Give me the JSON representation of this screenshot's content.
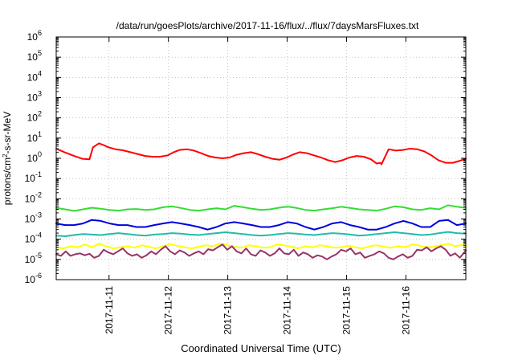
{
  "chart_data": {
    "type": "line",
    "title": "/data/run/goesPlots/archive/2017-11-16/flux/../flux/7daysMarsFluxes.txt",
    "xlabel": "Coordinated Universal Time (UTC)",
    "ylabel": {
      "base": "protons/cm",
      "sup": "2",
      "rest": "-s-sr-MeV"
    },
    "yscale": "log",
    "ylim_exp": [
      -6,
      6
    ],
    "yticks": [
      {
        "base": "10",
        "exp": "-6",
        "value": -6
      },
      {
        "base": "10",
        "exp": "-5",
        "value": -5
      },
      {
        "base": "10",
        "exp": "-4",
        "value": -4
      },
      {
        "base": "10",
        "exp": "-3",
        "value": -3
      },
      {
        "base": "10",
        "exp": "-2",
        "value": -2
      },
      {
        "base": "10",
        "exp": "-1",
        "value": -1
      },
      {
        "base": "10",
        "exp": "0",
        "value": 0
      },
      {
        "base": "10",
        "exp": "1",
        "value": 1
      },
      {
        "base": "10",
        "exp": "2",
        "value": 2
      },
      {
        "base": "10",
        "exp": "3",
        "value": 3
      },
      {
        "base": "10",
        "exp": "4",
        "value": 4
      },
      {
        "base": "10",
        "exp": "5",
        "value": 5
      },
      {
        "base": "10",
        "exp": "6",
        "value": 6
      }
    ],
    "xlim_days": [
      0,
      6.9
    ],
    "xticks": [
      {
        "label": "2017-11-11",
        "day": 0.89
      },
      {
        "label": "2017-11-12",
        "day": 1.89
      },
      {
        "label": "2017-11-13",
        "day": 2.89
      },
      {
        "label": "2017-11-14",
        "day": 3.89
      },
      {
        "label": "2017-11-15",
        "day": 4.89
      },
      {
        "label": "2017-11-16",
        "day": 5.89
      }
    ],
    "grid": true,
    "series": [
      {
        "color": "#ff0000",
        "x": [
          0,
          0.14,
          0.3,
          0.44,
          0.56,
          0.62,
          0.72,
          0.8,
          0.88,
          1.0,
          1.12,
          1.25,
          1.38,
          1.5,
          1.62,
          1.75,
          1.88,
          1.98,
          2.08,
          2.2,
          2.32,
          2.44,
          2.56,
          2.68,
          2.8,
          2.92,
          3.04,
          3.16,
          3.28,
          3.4,
          3.52,
          3.64,
          3.76,
          3.88,
          3.98,
          4.1,
          4.22,
          4.34,
          4.46,
          4.58,
          4.7,
          4.82,
          4.94,
          5.06,
          5.18,
          5.3,
          5.4,
          5.46,
          5.48,
          5.6,
          5.72,
          5.84,
          5.96,
          6.08,
          6.2,
          6.32,
          6.44,
          6.56,
          6.68,
          6.8,
          6.9
        ],
        "y": [
          3.0,
          2.0,
          1.3,
          0.95,
          0.9,
          3.5,
          5.5,
          4.5,
          3.5,
          2.8,
          2.5,
          2.0,
          1.6,
          1.3,
          1.2,
          1.2,
          1.4,
          2.0,
          2.6,
          2.8,
          2.4,
          1.8,
          1.3,
          1.1,
          1.0,
          1.1,
          1.5,
          1.8,
          2.0,
          1.6,
          1.2,
          0.95,
          0.85,
          1.1,
          1.5,
          2.0,
          1.8,
          1.4,
          1.1,
          0.8,
          0.65,
          0.8,
          1.1,
          1.3,
          1.2,
          0.9,
          0.55,
          0.6,
          0.5,
          2.8,
          2.4,
          2.6,
          3.0,
          2.8,
          2.2,
          1.4,
          0.8,
          0.6,
          0.6,
          0.75,
          0.95
        ]
      },
      {
        "color": "#33dd33",
        "x": [
          0,
          0.15,
          0.3,
          0.45,
          0.6,
          0.75,
          0.9,
          1.05,
          1.2,
          1.35,
          1.5,
          1.65,
          1.8,
          1.95,
          2.1,
          2.25,
          2.4,
          2.55,
          2.7,
          2.85,
          3.0,
          3.15,
          3.3,
          3.45,
          3.6,
          3.75,
          3.9,
          4.05,
          4.2,
          4.35,
          4.5,
          4.65,
          4.8,
          4.95,
          5.1,
          5.25,
          5.4,
          5.55,
          5.7,
          5.85,
          6.0,
          6.15,
          6.3,
          6.45,
          6.6,
          6.75,
          6.9
        ],
        "y": [
          0.0035,
          0.003,
          0.0025,
          0.003,
          0.0036,
          0.0032,
          0.0028,
          0.0026,
          0.003,
          0.0031,
          0.0028,
          0.003,
          0.0038,
          0.0042,
          0.0035,
          0.0028,
          0.0026,
          0.003,
          0.0034,
          0.003,
          0.0045,
          0.0038,
          0.0032,
          0.0028,
          0.003,
          0.0036,
          0.0041,
          0.0035,
          0.0028,
          0.0026,
          0.003,
          0.0034,
          0.004,
          0.0035,
          0.003,
          0.0028,
          0.0026,
          0.0032,
          0.0042,
          0.0038,
          0.003,
          0.0028,
          0.0034,
          0.003,
          0.0048,
          0.004,
          0.0035
        ]
      },
      {
        "color": "#0000dd",
        "x": [
          0,
          0.15,
          0.3,
          0.45,
          0.6,
          0.75,
          0.9,
          1.05,
          1.2,
          1.35,
          1.5,
          1.65,
          1.8,
          1.95,
          2.1,
          2.25,
          2.4,
          2.55,
          2.7,
          2.85,
          3.0,
          3.15,
          3.3,
          3.45,
          3.6,
          3.75,
          3.9,
          4.05,
          4.2,
          4.35,
          4.5,
          4.65,
          4.8,
          4.95,
          5.1,
          5.25,
          5.4,
          5.55,
          5.7,
          5.85,
          6.0,
          6.15,
          6.3,
          6.45,
          6.6,
          6.75,
          6.9
        ],
        "y": [
          0.0006,
          0.0005,
          0.0005,
          0.0006,
          0.0009,
          0.0008,
          0.0006,
          0.0005,
          0.0005,
          0.0004,
          0.0004,
          0.0005,
          0.0006,
          0.0007,
          0.0006,
          0.0005,
          0.0004,
          0.0003,
          0.0004,
          0.0006,
          0.0007,
          0.0006,
          0.0005,
          0.0004,
          0.0004,
          0.0005,
          0.0007,
          0.0006,
          0.0004,
          0.0003,
          0.0004,
          0.0006,
          0.0007,
          0.0005,
          0.0004,
          0.0003,
          0.0003,
          0.0004,
          0.0006,
          0.0008,
          0.0006,
          0.0004,
          0.0004,
          0.0008,
          0.0009,
          0.0005,
          0.0006
        ]
      },
      {
        "color": "#22bbaa",
        "x": [
          0,
          0.15,
          0.3,
          0.45,
          0.6,
          0.75,
          0.9,
          1.05,
          1.2,
          1.35,
          1.5,
          1.65,
          1.8,
          1.95,
          2.1,
          2.25,
          2.4,
          2.55,
          2.7,
          2.85,
          3.0,
          3.15,
          3.3,
          3.45,
          3.6,
          3.75,
          3.9,
          4.05,
          4.2,
          4.35,
          4.5,
          4.65,
          4.8,
          4.95,
          5.1,
          5.25,
          5.4,
          5.55,
          5.7,
          5.85,
          6.0,
          6.15,
          6.3,
          6.45,
          6.6,
          6.75,
          6.9
        ],
        "y": [
          0.00015,
          0.00014,
          0.00016,
          0.00018,
          0.00017,
          0.00016,
          0.00018,
          0.0002,
          0.00018,
          0.00016,
          0.00015,
          0.00017,
          0.00018,
          0.0002,
          0.00019,
          0.00017,
          0.00016,
          0.00018,
          0.0002,
          0.00022,
          0.0002,
          0.00018,
          0.00016,
          0.00015,
          0.00016,
          0.00018,
          0.0002,
          0.00019,
          0.00017,
          0.00016,
          0.00018,
          0.0002,
          0.00019,
          0.00017,
          0.00015,
          0.00016,
          0.00018,
          0.0002,
          0.00022,
          0.0002,
          0.00018,
          0.00016,
          0.00017,
          0.0002,
          0.00023,
          0.0002,
          0.00019
        ]
      },
      {
        "color": "#ffff00",
        "x": [
          0,
          0.12,
          0.24,
          0.36,
          0.48,
          0.6,
          0.72,
          0.84,
          0.96,
          1.08,
          1.2,
          1.32,
          1.44,
          1.56,
          1.68,
          1.8,
          1.92,
          2.04,
          2.16,
          2.28,
          2.4,
          2.52,
          2.64,
          2.76,
          2.88,
          3.0,
          3.12,
          3.24,
          3.36,
          3.48,
          3.6,
          3.72,
          3.84,
          3.96,
          4.08,
          4.2,
          4.32,
          4.44,
          4.56,
          4.68,
          4.8,
          4.92,
          5.04,
          5.16,
          5.28,
          5.4,
          5.52,
          5.64,
          5.76,
          5.88,
          6.0,
          6.12,
          6.24,
          6.36,
          6.48,
          6.6,
          6.72,
          6.84,
          6.9
        ],
        "y": [
          4e-05,
          3.5e-05,
          4.5e-05,
          4e-05,
          5.5e-05,
          4e-05,
          6e-05,
          4.5e-05,
          3.5e-05,
          4e-05,
          4.5e-05,
          3.8e-05,
          5e-05,
          4.2e-05,
          3.5e-05,
          4.5e-05,
          5.5e-05,
          4.8e-05,
          4e-05,
          3.5e-05,
          4.2e-05,
          5e-05,
          4.5e-05,
          6e-05,
          5e-05,
          4.2e-05,
          3.8e-05,
          5e-05,
          4.5e-05,
          3.8e-05,
          4e-05,
          5.5e-05,
          5e-05,
          4.2e-05,
          3.5e-05,
          4.5e-05,
          4e-05,
          5e-05,
          4.5e-05,
          3.8e-05,
          4e-05,
          4.8e-05,
          4e-05,
          3.5e-05,
          4.5e-05,
          5e-05,
          4.2e-05,
          3.8e-05,
          4.5e-05,
          4e-05,
          5.5e-05,
          4.8e-05,
          4e-05,
          4.2e-05,
          5e-05,
          6e-05,
          4.5e-05,
          5.2e-05,
          4.5e-05
        ]
      },
      {
        "color": "#993366",
        "x": [
          0,
          0.08,
          0.16,
          0.24,
          0.32,
          0.4,
          0.48,
          0.56,
          0.64,
          0.72,
          0.8,
          0.88,
          0.96,
          1.04,
          1.12,
          1.2,
          1.28,
          1.36,
          1.44,
          1.52,
          1.6,
          1.68,
          1.76,
          1.84,
          1.92,
          2.0,
          2.08,
          2.16,
          2.24,
          2.32,
          2.4,
          2.48,
          2.56,
          2.64,
          2.72,
          2.8,
          2.88,
          2.96,
          3.04,
          3.12,
          3.2,
          3.28,
          3.36,
          3.44,
          3.52,
          3.6,
          3.68,
          3.76,
          3.84,
          3.92,
          4.0,
          4.08,
          4.16,
          4.24,
          4.32,
          4.4,
          4.48,
          4.56,
          4.64,
          4.72,
          4.8,
          4.88,
          4.96,
          5.04,
          5.12,
          5.2,
          5.28,
          5.36,
          5.44,
          5.52,
          5.6,
          5.68,
          5.76,
          5.84,
          5.92,
          6.0,
          6.08,
          6.16,
          6.24,
          6.32,
          6.4,
          6.48,
          6.56,
          6.64,
          6.72,
          6.8,
          6.9
        ],
        "y": [
          1.8e-05,
          1.5e-05,
          2.5e-05,
          1.5e-05,
          1.8e-05,
          2e-05,
          1.6e-05,
          1.9e-05,
          1.2e-05,
          1.5e-05,
          3e-05,
          2.2e-05,
          1.8e-05,
          2.5e-05,
          3.5e-05,
          2e-05,
          1.5e-05,
          1.8e-05,
          1.2e-05,
          1.6e-05,
          2.5e-05,
          1.8e-05,
          3e-05,
          4.5e-05,
          2.5e-05,
          1.8e-05,
          2.8e-05,
          2.2e-05,
          1.5e-05,
          2e-05,
          2.5e-05,
          1.8e-05,
          3.2e-05,
          2.8e-05,
          4e-05,
          5.5e-05,
          3e-05,
          4.5e-05,
          2.5e-05,
          2e-05,
          3.5e-05,
          1.8e-05,
          1.5e-05,
          2.8e-05,
          2.2e-05,
          1.5e-05,
          2e-05,
          3.5e-05,
          2e-05,
          1.8e-05,
          3e-05,
          1.5e-05,
          2.2e-05,
          1.8e-05,
          1.2e-05,
          1.6e-05,
          1.4e-05,
          1e-05,
          1.4e-05,
          1.8e-05,
          3e-05,
          2.5e-05,
          3.5e-05,
          1.8e-05,
          2.2e-05,
          1.2e-05,
          1.5e-05,
          1.8e-05,
          2.5e-05,
          2e-05,
          1.2e-05,
          1e-05,
          1.4e-05,
          1.8e-05,
          1.2e-05,
          1.5e-05,
          3e-05,
          2.8e-05,
          4e-05,
          2.5e-05,
          3.5e-05,
          4.5e-05,
          3e-05,
          1.5e-05,
          2e-05,
          1.2e-05,
          2.8e-05
        ]
      }
    ]
  }
}
